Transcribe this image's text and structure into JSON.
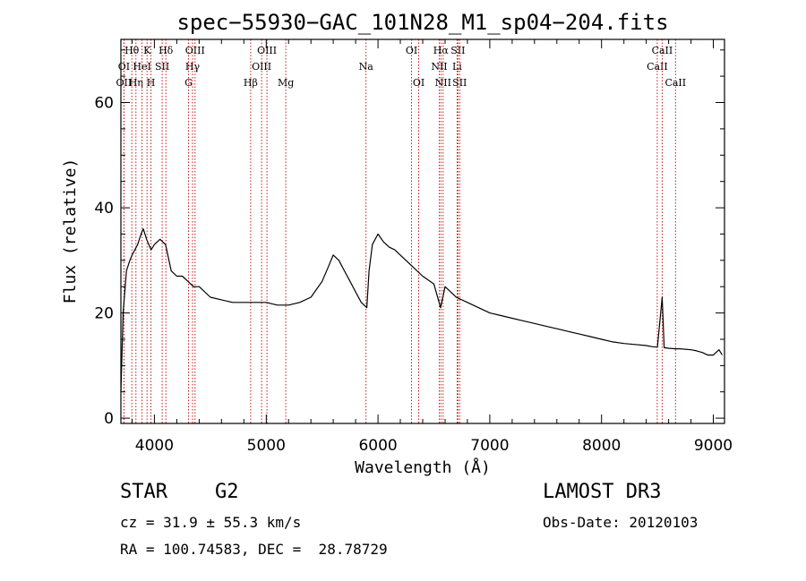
{
  "chart_data": {
    "type": "line",
    "title": "spec−55930−GAC_101N28_M1_sp04−204.fits",
    "xlabel": "Wavelength (Å)",
    "ylabel": "Flux (relative)",
    "xlim": [
      3700,
      9100
    ],
    "ylim": [
      -1,
      72
    ],
    "x_ticks": [
      4000,
      5000,
      6000,
      7000,
      8000,
      9000
    ],
    "y_ticks": [
      0,
      20,
      40,
      60
    ],
    "series": [
      {
        "name": "spectrum",
        "x": [
          3700,
          3720,
          3750,
          3780,
          3800,
          3850,
          3880,
          3900,
          3930,
          3970,
          4000,
          4050,
          4100,
          4150,
          4200,
          4250,
          4300,
          4350,
          4400,
          4500,
          4600,
          4700,
          4800,
          4900,
          5000,
          5100,
          5200,
          5300,
          5400,
          5500,
          5560,
          5600,
          5650,
          5700,
          5750,
          5800,
          5850,
          5900,
          5920,
          5950,
          6000,
          6050,
          6100,
          6150,
          6200,
          6300,
          6400,
          6500,
          6560,
          6600,
          6700,
          6800,
          6900,
          7000,
          7100,
          7200,
          7300,
          7400,
          7500,
          7600,
          7700,
          7800,
          7900,
          8000,
          8100,
          8200,
          8300,
          8400,
          8450,
          8500,
          8542,
          8560,
          8600,
          8662,
          8700,
          8800,
          8850,
          8900,
          8950,
          9000,
          9050,
          9080
        ],
        "y": [
          5,
          20,
          28,
          30,
          31,
          33,
          35,
          36,
          34,
          32,
          33,
          34,
          33,
          28,
          27,
          27,
          26,
          25,
          25,
          23,
          22.5,
          22,
          22,
          22,
          22,
          21.5,
          21.5,
          22,
          23,
          26,
          29,
          31,
          30,
          28,
          26,
          24,
          22,
          21,
          28,
          33,
          35,
          33.5,
          32.5,
          32,
          31,
          29,
          27,
          25.5,
          21,
          25,
          23,
          22,
          21,
          20,
          19.5,
          19,
          18.5,
          18,
          17.5,
          17,
          16.5,
          16,
          15.5,
          15,
          14.5,
          14.2,
          14,
          13.8,
          13.6,
          13.5,
          23,
          13.4,
          13.3,
          13.2,
          13.2,
          13,
          12.8,
          12.5,
          12,
          12,
          13,
          12
        ]
      }
    ],
    "line_labels": [
      {
        "name": "OⅠⅠ",
        "x": 3727,
        "row": 2,
        "text": "OⅠⅠ"
      },
      {
        "name": "Hη",
        "x": 3835,
        "row": 2,
        "text": "Hη"
      },
      {
        "name": "HeⅠ",
        "x": 3889,
        "row": 1,
        "text": "HeⅠ"
      },
      {
        "name": "Hθ",
        "x": 3798,
        "row": 0,
        "text": "Hθ"
      },
      {
        "name": "OⅠ",
        "x": 3727,
        "row": 1,
        "text": "OⅠ"
      },
      {
        "name": "K",
        "x": 3934,
        "row": 0,
        "text": "K"
      },
      {
        "name": "SⅠⅠ",
        "x": 4069,
        "row": 1,
        "text": "SⅠⅠ"
      },
      {
        "name": "H",
        "x": 3969,
        "row": 2,
        "text": "H"
      },
      {
        "name": "Hδ",
        "x": 4102,
        "row": 0,
        "text": "Hδ"
      },
      {
        "name": "G",
        "x": 4305,
        "row": 2,
        "text": "G"
      },
      {
        "name": "Hγ",
        "x": 4341,
        "row": 1,
        "text": "Hγ"
      },
      {
        "name": "OⅠⅠⅠ",
        "x": 4363,
        "row": 0,
        "text": "OⅠⅠⅠ"
      },
      {
        "name": "Hβ",
        "x": 4861,
        "row": 2,
        "text": "Hβ"
      },
      {
        "name": "OⅠⅠⅠ 4959",
        "x": 4959,
        "row": 1,
        "text": "OⅠⅠⅠ"
      },
      {
        "name": "OⅠⅠⅠ 5007",
        "x": 5007,
        "row": 0,
        "text": "OⅠⅠⅠ"
      },
      {
        "name": "Mg",
        "x": 5175,
        "row": 2,
        "text": "Mg"
      },
      {
        "name": "Na",
        "x": 5893,
        "row": 1,
        "text": "Na"
      },
      {
        "name": "OⅠ 6300",
        "x": 6300,
        "row": 0,
        "text": "OⅠ"
      },
      {
        "name": "OⅠ 6364",
        "x": 6364,
        "row": 2,
        "text": "OⅠ"
      },
      {
        "name": "NⅠⅠ 6548",
        "x": 6548,
        "row": 1,
        "text": "NⅠⅠ"
      },
      {
        "name": "Hα",
        "x": 6563,
        "row": 0,
        "text": "Hα"
      },
      {
        "name": "NⅠⅠ 6583",
        "x": 6583,
        "row": 2,
        "text": "NⅠⅠ"
      },
      {
        "name": "Li",
        "x": 6708,
        "row": 1,
        "text": "Li"
      },
      {
        "name": "SⅠⅠ 6716",
        "x": 6716,
        "row": 0,
        "text": "SⅠⅠ"
      },
      {
        "name": "SⅠⅠ 6731",
        "x": 6731,
        "row": 2,
        "text": "SⅠⅠ"
      },
      {
        "name": "CaⅠⅠ 8498",
        "x": 8498,
        "row": 1,
        "text": "CaⅠⅠ"
      },
      {
        "name": "CaⅠⅠ 8542",
        "x": 8542,
        "row": 0,
        "text": "CaⅠⅠ"
      },
      {
        "name": "CaⅠⅠ 8662",
        "x": 8662,
        "row": 2,
        "text": "CaⅠⅠ"
      }
    ]
  },
  "info": {
    "class_line": "STAR    G2",
    "survey": "LAMOST DR3",
    "cz_line": "cz = 31.9 ± 55.3 km/s",
    "obs_date_line": "Obs-Date: 20120103",
    "radec_line": "RA = 100.74583, DEC =  28.78729"
  },
  "colors": {
    "spectrum": "#000000",
    "line_markers": "#c00000",
    "axes": "#000000"
  }
}
